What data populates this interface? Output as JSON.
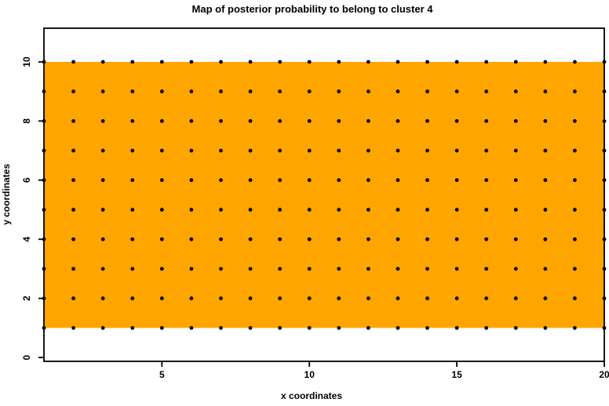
{
  "chart_data": {
    "type": "scatter",
    "title": "Map of posterior probability to belong to cluster  4",
    "xlabel": "x coordinates",
    "ylabel": "y coordinates",
    "xlim": [
      1,
      20
    ],
    "ylim": [
      -0.13,
      11.14
    ],
    "x_ticks": [
      5,
      10,
      15,
      20
    ],
    "y_ticks": [
      0,
      2,
      4,
      6,
      8,
      10
    ],
    "grid": false,
    "legend": null,
    "region": {
      "x0": 1,
      "x1": 20,
      "y0": 1,
      "y1": 10,
      "fill": "#FFA500"
    },
    "grid_points": {
      "x_values": [
        1,
        2,
        3,
        4,
        5,
        6,
        7,
        8,
        9,
        10,
        11,
        12,
        13,
        14,
        15,
        16,
        17,
        18,
        19,
        20
      ],
      "y_values": [
        1,
        2,
        3,
        4,
        5,
        6,
        7,
        8,
        9,
        10
      ],
      "note": "data points at every (x, y) pair of x_values × y_values"
    },
    "marker": {
      "shape": "filled-circle",
      "color": "#000000",
      "radius_px": 2.4
    },
    "axis_color": "#000000",
    "background_color": "#FFFFFF"
  }
}
